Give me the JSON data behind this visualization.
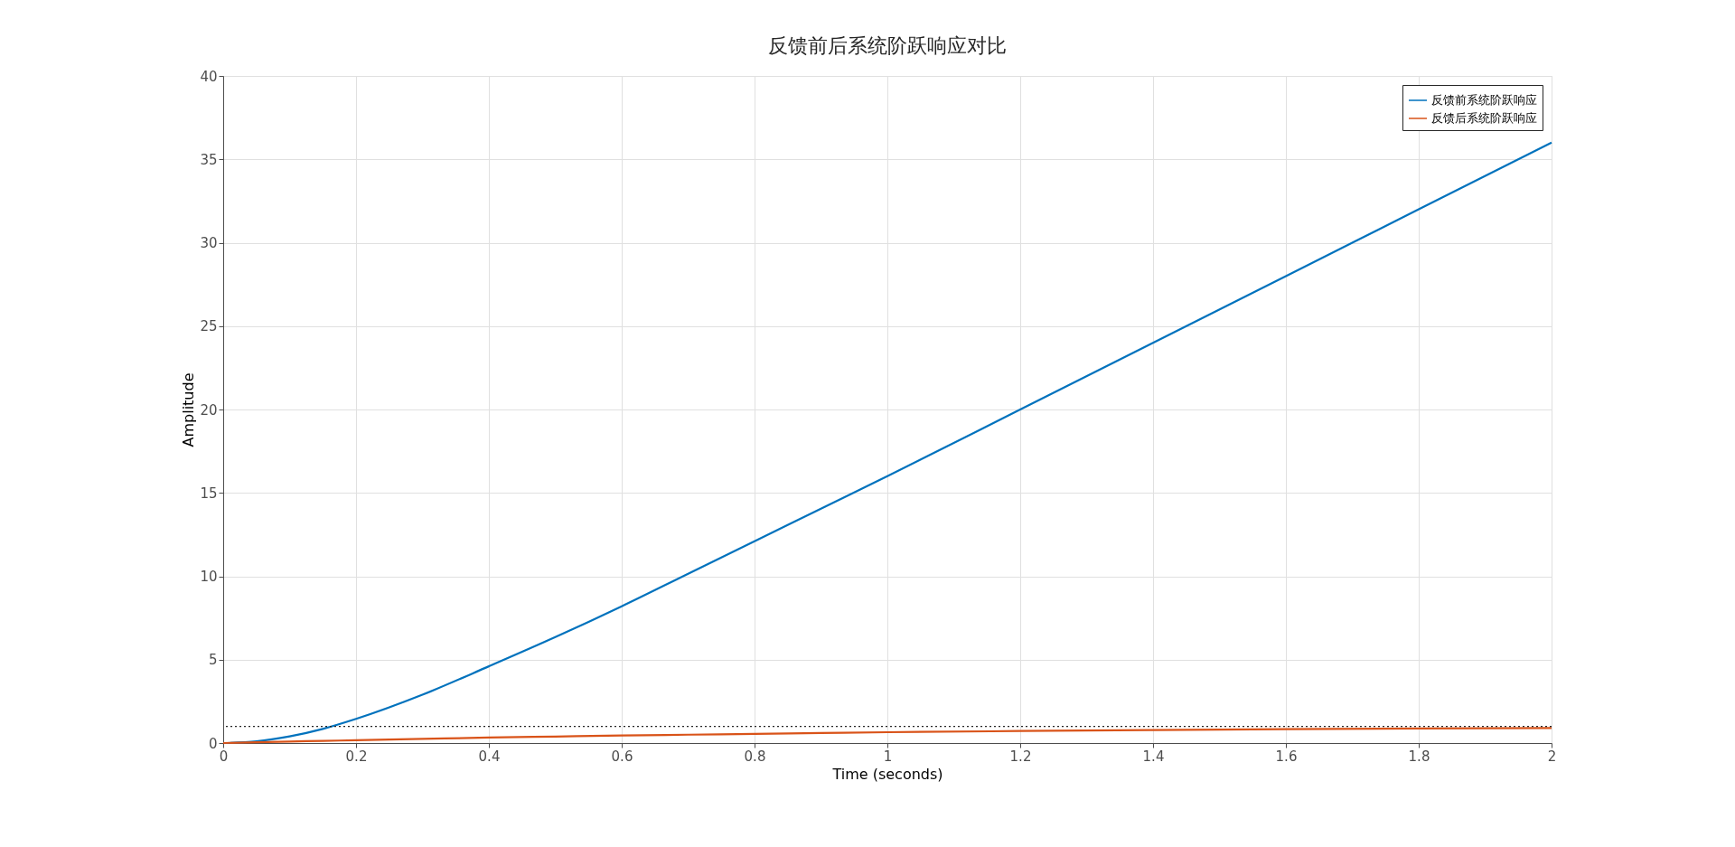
{
  "chart_data": {
    "type": "line",
    "title": "反馈前后系统阶跃响应对比",
    "xlabel": "Time (seconds)",
    "ylabel": "Amplitude",
    "x": [
      0,
      0.05,
      0.1,
      0.15,
      0.2,
      0.3,
      0.4,
      0.5,
      0.6,
      0.7,
      0.8,
      0.9,
      1.0,
      1.2,
      1.4,
      1.6,
      1.8,
      2.0
    ],
    "series": [
      {
        "name": "反馈前系统阶跃响应",
        "color": "#0072bd",
        "values": [
          0,
          0.1,
          0.4,
          0.85,
          1.45,
          2.9,
          4.6,
          6.35,
          8.2,
          10.15,
          12.1,
          14.05,
          16.0,
          20.0,
          24.0,
          28.0,
          32.0,
          36.0
        ]
      },
      {
        "name": "反馈后系统阶跃响应",
        "color": "#d95319",
        "values": [
          0,
          0.05,
          0.09,
          0.13,
          0.17,
          0.25,
          0.33,
          0.39,
          0.45,
          0.5,
          0.55,
          0.6,
          0.65,
          0.72,
          0.78,
          0.83,
          0.87,
          0.9
        ]
      }
    ],
    "xlim": [
      0,
      2
    ],
    "xticks": [
      0,
      0.2,
      0.4,
      0.6,
      0.8,
      1,
      1.2,
      1.4,
      1.6,
      1.8,
      2
    ],
    "ylim": [
      0,
      40
    ],
    "yticks": [
      0,
      5,
      10,
      15,
      20,
      25,
      30,
      35,
      40
    ],
    "ref_lines": [
      {
        "axis": "y",
        "value": 1,
        "label": null,
        "color": "#262626",
        "line_style": "dotted"
      }
    ],
    "grid": true,
    "legend": "top right",
    "line_style": "solid",
    "marker": "none"
  }
}
